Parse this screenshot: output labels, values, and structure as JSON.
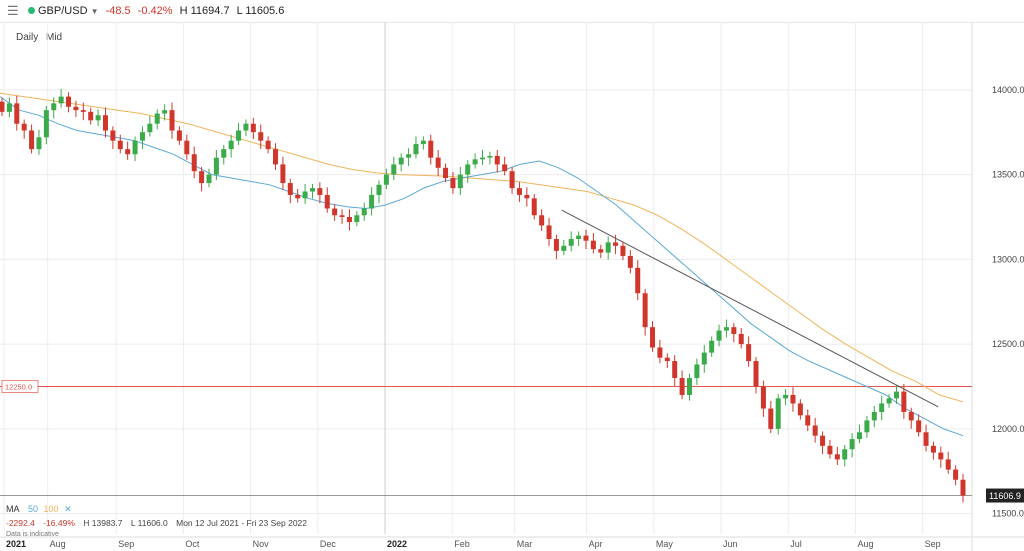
{
  "header": {
    "symbol": "GBP/USD",
    "change": "-48.5",
    "change_pct": "-0.42%",
    "high": "H 11694.7",
    "low": "L 11605.6",
    "status_color": "#2bb673",
    "menu_icon": "hamburger-icon",
    "dropdown_icon": "caret-down-icon"
  },
  "modes": {
    "interval": "Daily",
    "price": "Mid"
  },
  "indicators": {
    "label": "MA",
    "ma_fast": "50",
    "ma_slow": "100",
    "close_icon": "close-icon",
    "ma_fast_color": "#5aa9d6",
    "ma_slow_color": "#f0b45a"
  },
  "stats": {
    "change": "-2292.4",
    "change_pct": "-16.49%",
    "high": "H 13983.7",
    "low": "L 11606.0",
    "range": "Mon 12 Jul 2021 - Fri 23 Sep 2022"
  },
  "note": "Data is indicative",
  "chart_data": {
    "type": "candlestick",
    "x_axis": {
      "labels": [
        "2021",
        "Aug",
        "Sep",
        "Oct",
        "Nov",
        "Dec",
        "2022",
        "Feb",
        "Mar",
        "Apr",
        "May",
        "Jun",
        "Jul",
        "Aug",
        "Sep"
      ],
      "year_labels": [
        "2021",
        "2022"
      ],
      "month_index": [
        0,
        0.65,
        1.67,
        2.67,
        3.67,
        4.67,
        5.67,
        6.67,
        7.6,
        8.67,
        9.67,
        10.67,
        11.67,
        12.67,
        13.67
      ],
      "range": [
        "2021-07-12",
        "2022-09-23"
      ]
    },
    "y_axis": {
      "ticks": [
        "14000.0",
        "13500.0",
        "13000.0",
        "12500.0",
        "12000.0",
        "11500.0"
      ],
      "tick_values": [
        14000,
        13500,
        13000,
        12500,
        12000,
        11500
      ],
      "range": [
        11380,
        14400
      ],
      "side": "right"
    },
    "close": [
      13870,
      13920,
      13800,
      13760,
      13650,
      13720,
      13880,
      13920,
      13960,
      13900,
      13880,
      13870,
      13820,
      13850,
      13760,
      13700,
      13650,
      13620,
      13700,
      13750,
      13800,
      13860,
      13880,
      13760,
      13700,
      13620,
      13520,
      13450,
      13500,
      13600,
      13650,
      13700,
      13760,
      13800,
      13750,
      13700,
      13650,
      13560,
      13450,
      13380,
      13360,
      13400,
      13420,
      13380,
      13300,
      13260,
      13250,
      13220,
      13260,
      13300,
      13380,
      13440,
      13500,
      13560,
      13600,
      13620,
      13680,
      13700,
      13600,
      13540,
      13480,
      13420,
      13500,
      13560,
      13590,
      13600,
      13610,
      13560,
      13520,
      13420,
      13380,
      13360,
      13260,
      13200,
      13120,
      13050,
      13080,
      13120,
      13140,
      13110,
      13060,
      13040,
      13100,
      13080,
      13020,
      12950,
      12800,
      12600,
      12480,
      12420,
      12400,
      12300,
      12200,
      12300,
      12380,
      12450,
      12520,
      12580,
      12600,
      12560,
      12500,
      12400,
      12250,
      12120,
      12000,
      12180,
      12200,
      12150,
      12080,
      12020,
      11960,
      11900,
      11850,
      11820,
      11880,
      11940,
      11980,
      12050,
      12100,
      12150,
      12180,
      12220,
      12100,
      12050,
      11980,
      11900,
      11860,
      11820,
      11760,
      11700,
      11606.9
    ],
    "ma_50": [
      13960,
      13880,
      13850,
      13800,
      13760,
      13740,
      13720,
      13700,
      13660,
      13620,
      13560,
      13500,
      13480,
      13460,
      13440,
      13400,
      13360,
      13330,
      13310,
      13300,
      13320,
      13360,
      13420,
      13460,
      13480,
      13500,
      13520,
      13560,
      13580,
      13540,
      13480,
      13400,
      13320,
      13220,
      13120,
      13020,
      12920,
      12820,
      12720,
      12620,
      12540,
      12460,
      12400,
      12350,
      12300,
      12250,
      12200,
      12120,
      12060,
      12000,
      11960
    ],
    "ma_100": [
      13980,
      13960,
      13940,
      13920,
      13900,
      13880,
      13860,
      13830,
      13800,
      13760,
      13720,
      13680,
      13640,
      13600,
      13560,
      13530,
      13510,
      13500,
      13495,
      13490,
      13480,
      13470,
      13460,
      13440,
      13420,
      13400,
      13360,
      13320,
      13260,
      13180,
      13090,
      12990,
      12890,
      12790,
      12690,
      12590,
      12500,
      12420,
      12340,
      12280,
      12200,
      12160
    ],
    "trendline": {
      "from": [
        "2022-03-21",
        13290
      ],
      "to": [
        "2022-09-08",
        12130
      ]
    },
    "horizontal_line": {
      "label": "12250.0",
      "value": 12250,
      "color": "#e8554d"
    },
    "last_price": {
      "label": "11606.9",
      "value": 11606.9
    },
    "colors": {
      "up": "#3aaa4a",
      "down": "#d0362c",
      "grid": "#ececec"
    }
  }
}
